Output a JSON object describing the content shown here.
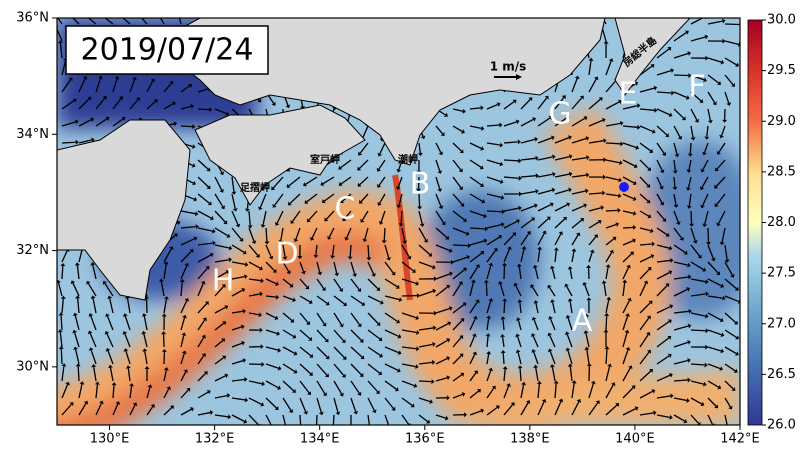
{
  "title": "2019/07/24",
  "map": {
    "lon_range": [
      129,
      142
    ],
    "lat_range": [
      29,
      36
    ],
    "lon_ticks": [
      {
        "value": 130,
        "label": "130°E"
      },
      {
        "value": 132,
        "label": "132°E"
      },
      {
        "value": 134,
        "label": "134°E"
      },
      {
        "value": 136,
        "label": "136°E"
      },
      {
        "value": 138,
        "label": "138°E"
      },
      {
        "value": 140,
        "label": "140°E"
      },
      {
        "value": 142,
        "label": "142°E"
      }
    ],
    "lat_ticks": [
      {
        "value": 30,
        "label": "30°N"
      },
      {
        "value": 32,
        "label": "32°N"
      },
      {
        "value": 34,
        "label": "34°N"
      },
      {
        "value": 36,
        "label": "36°N"
      }
    ]
  },
  "colorbar": {
    "range": [
      26,
      30
    ],
    "ticks": [
      {
        "value": 26,
        "label": "26.0"
      },
      {
        "value": 26.5,
        "label": "26.5"
      },
      {
        "value": 27,
        "label": "27.0"
      },
      {
        "value": 27.5,
        "label": "27.5"
      },
      {
        "value": 28,
        "label": "28.0"
      },
      {
        "value": 28.5,
        "label": "28.5"
      },
      {
        "value": 29,
        "label": "29.0"
      },
      {
        "value": 29.5,
        "label": "29.5"
      },
      {
        "value": 30,
        "label": "30.0"
      }
    ]
  },
  "scale_label": "1 m/s",
  "place_names": [
    "室戸岬",
    "足摺岬",
    "潮岬",
    "房総半島"
  ],
  "region_labels": [
    "A",
    "B",
    "C",
    "D",
    "E",
    "F",
    "G",
    "H"
  ]
}
